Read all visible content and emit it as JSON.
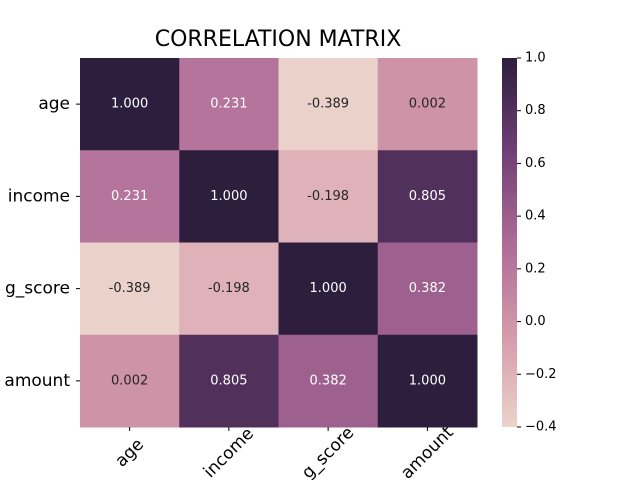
{
  "chart_data": {
    "type": "heatmap",
    "title": "CORRELATION MATRIX",
    "categories": [
      "age",
      "income",
      "g_score",
      "amount"
    ],
    "values": [
      [
        1,
        0.231,
        -0.389,
        0.002
      ],
      [
        0.231,
        1,
        -0.198,
        0.805
      ],
      [
        -0.389,
        -0.198,
        1,
        0.382
      ],
      [
        0.002,
        0.805,
        0.382,
        1
      ]
    ],
    "value_labels": [
      [
        "1.000",
        "0.231",
        "-0.389",
        "0.002"
      ],
      [
        "0.231",
        "1.000",
        "-0.198",
        "0.805"
      ],
      [
        "-0.389",
        "-0.198",
        "1.000",
        "0.382"
      ],
      [
        "0.002",
        "0.805",
        "0.382",
        "1.000"
      ]
    ],
    "colormap": [
      "#ebd3cb",
      "#d49aaa",
      "#ad6b97",
      "#6f3f74",
      "#2d1e3e"
    ],
    "clim": [
      -0.4,
      1.0
    ],
    "cticks": [
      {
        "value": -0.4,
        "label": "−0.4"
      },
      {
        "value": -0.2,
        "label": "−0.2"
      },
      {
        "value": 0,
        "label": "0.0"
      },
      {
        "value": 0.2,
        "label": "0.2"
      },
      {
        "value": 0.4,
        "label": "0.4"
      },
      {
        "value": 0.6,
        "label": "0.6"
      },
      {
        "value": 0.8,
        "label": "0.8"
      },
      {
        "value": 1,
        "label": "1.0"
      }
    ]
  }
}
